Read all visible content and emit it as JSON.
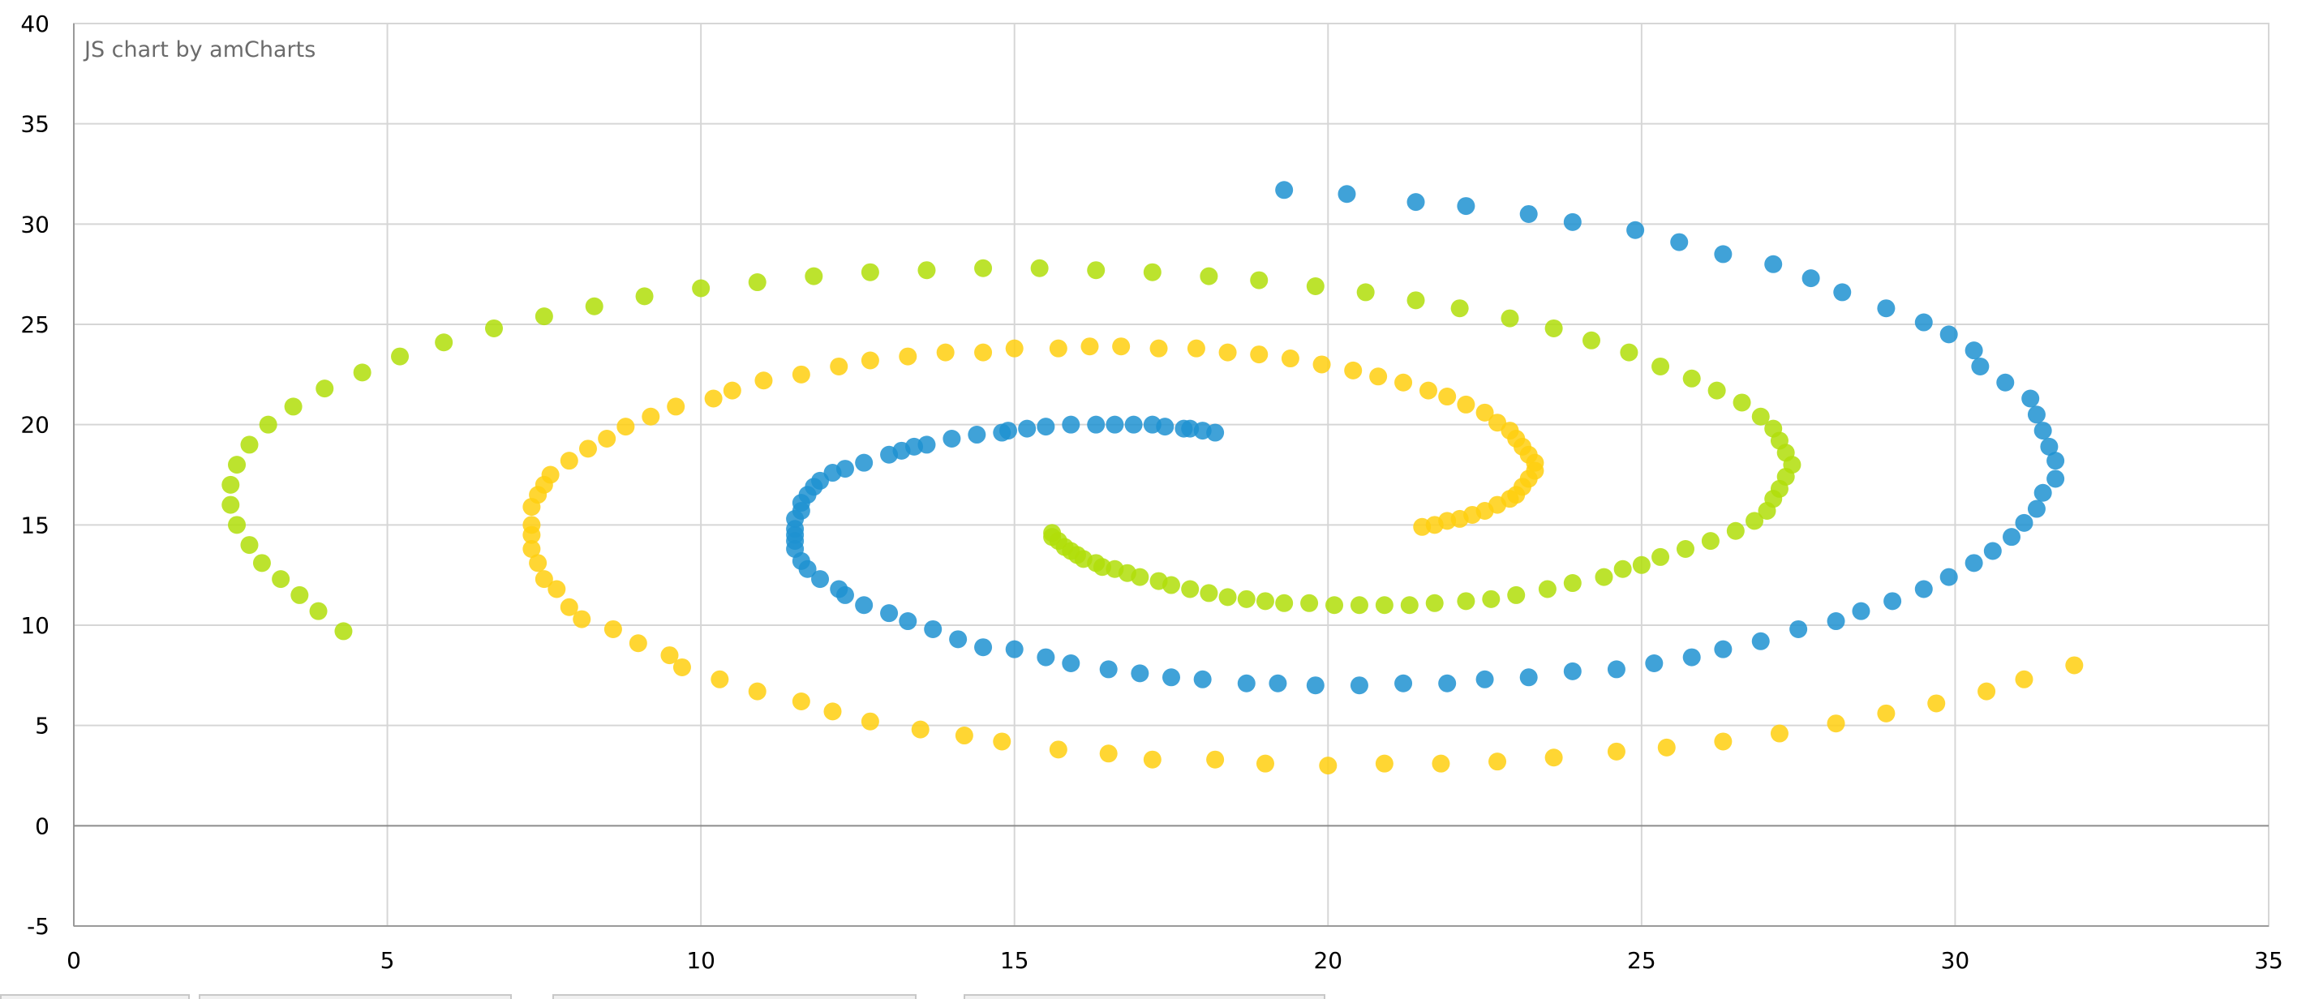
{
  "credit": "JS chart by amCharts",
  "chart_data": {
    "type": "scatter",
    "title": "",
    "xlabel": "",
    "ylabel": "",
    "xlim": [
      0,
      35
    ],
    "ylim": [
      -5,
      40
    ],
    "x_ticks": [
      0,
      5,
      10,
      15,
      20,
      25,
      30,
      35
    ],
    "y_ticks": [
      -5,
      0,
      5,
      10,
      15,
      20,
      25,
      30,
      35,
      40
    ],
    "grid": true,
    "legend": "none",
    "series": [
      {
        "color": "#1f92d1",
        "points": [
          [
            18.2,
            19.6
          ],
          [
            18.0,
            19.7
          ],
          [
            17.8,
            19.8
          ],
          [
            17.7,
            19.8
          ],
          [
            17.4,
            19.9
          ],
          [
            17.2,
            20.0
          ],
          [
            16.9,
            20.0
          ],
          [
            16.6,
            20.0
          ],
          [
            16.3,
            20.0
          ],
          [
            15.9,
            20.0
          ],
          [
            15.5,
            19.9
          ],
          [
            15.2,
            19.8
          ],
          [
            14.9,
            19.7
          ],
          [
            14.8,
            19.6
          ],
          [
            14.4,
            19.5
          ],
          [
            14.0,
            19.3
          ],
          [
            13.6,
            19.0
          ],
          [
            13.4,
            18.9
          ],
          [
            13.2,
            18.7
          ],
          [
            13.0,
            18.5
          ],
          [
            12.6,
            18.1
          ],
          [
            12.3,
            17.8
          ],
          [
            12.1,
            17.6
          ],
          [
            11.9,
            17.2
          ],
          [
            11.8,
            16.9
          ],
          [
            11.7,
            16.5
          ],
          [
            11.6,
            16.1
          ],
          [
            11.6,
            15.7
          ],
          [
            11.5,
            15.3
          ],
          [
            11.5,
            14.8
          ],
          [
            11.5,
            14.5
          ],
          [
            11.5,
            14.2
          ],
          [
            11.5,
            13.8
          ],
          [
            11.6,
            13.2
          ],
          [
            11.7,
            12.8
          ],
          [
            11.9,
            12.3
          ],
          [
            12.2,
            11.8
          ],
          [
            12.3,
            11.5
          ],
          [
            12.6,
            11.0
          ],
          [
            13.0,
            10.6
          ],
          [
            13.3,
            10.2
          ],
          [
            13.7,
            9.8
          ],
          [
            14.1,
            9.3
          ],
          [
            14.5,
            8.9
          ],
          [
            15.0,
            8.8
          ],
          [
            15.5,
            8.4
          ],
          [
            15.9,
            8.1
          ],
          [
            16.5,
            7.8
          ],
          [
            17.0,
            7.6
          ],
          [
            17.5,
            7.4
          ],
          [
            18.0,
            7.3
          ],
          [
            18.7,
            7.1
          ],
          [
            19.2,
            7.1
          ],
          [
            19.8,
            7.0
          ],
          [
            20.5,
            7.0
          ],
          [
            21.2,
            7.1
          ],
          [
            21.9,
            7.1
          ],
          [
            22.5,
            7.3
          ],
          [
            23.2,
            7.4
          ],
          [
            23.9,
            7.7
          ],
          [
            24.6,
            7.8
          ],
          [
            25.2,
            8.1
          ],
          [
            25.8,
            8.4
          ],
          [
            26.3,
            8.8
          ],
          [
            26.9,
            9.2
          ],
          [
            27.5,
            9.8
          ],
          [
            28.1,
            10.2
          ],
          [
            28.5,
            10.7
          ],
          [
            29.0,
            11.2
          ],
          [
            29.5,
            11.8
          ],
          [
            29.9,
            12.4
          ],
          [
            30.3,
            13.1
          ],
          [
            30.6,
            13.7
          ],
          [
            30.9,
            14.4
          ],
          [
            31.1,
            15.1
          ],
          [
            31.3,
            15.8
          ],
          [
            31.4,
            16.6
          ],
          [
            31.6,
            17.3
          ],
          [
            31.6,
            18.2
          ],
          [
            31.5,
            18.9
          ],
          [
            31.4,
            19.7
          ],
          [
            31.3,
            20.5
          ],
          [
            31.2,
            21.3
          ],
          [
            30.8,
            22.1
          ],
          [
            30.4,
            22.9
          ],
          [
            30.3,
            23.7
          ],
          [
            29.9,
            24.5
          ],
          [
            29.5,
            25.1
          ],
          [
            28.9,
            25.8
          ],
          [
            28.2,
            26.6
          ],
          [
            27.7,
            27.3
          ],
          [
            27.1,
            28.0
          ],
          [
            26.3,
            28.5
          ],
          [
            25.6,
            29.1
          ],
          [
            24.9,
            29.7
          ],
          [
            23.9,
            30.1
          ],
          [
            23.2,
            30.5
          ],
          [
            22.2,
            30.9
          ],
          [
            21.4,
            31.1
          ],
          [
            20.3,
            31.5
          ],
          [
            19.3,
            31.7
          ]
        ]
      },
      {
        "color": "#ffcf0f",
        "points": [
          [
            21.5,
            14.9
          ],
          [
            21.7,
            15.0
          ],
          [
            21.9,
            15.2
          ],
          [
            22.1,
            15.3
          ],
          [
            22.3,
            15.5
          ],
          [
            22.5,
            15.7
          ],
          [
            22.7,
            16.0
          ],
          [
            22.9,
            16.3
          ],
          [
            23.0,
            16.5
          ],
          [
            23.1,
            16.9
          ],
          [
            23.2,
            17.3
          ],
          [
            23.3,
            17.7
          ],
          [
            23.3,
            18.1
          ],
          [
            23.2,
            18.5
          ],
          [
            23.1,
            18.9
          ],
          [
            23.0,
            19.3
          ],
          [
            22.9,
            19.7
          ],
          [
            22.7,
            20.1
          ],
          [
            22.5,
            20.6
          ],
          [
            22.2,
            21.0
          ],
          [
            21.9,
            21.4
          ],
          [
            21.6,
            21.7
          ],
          [
            21.2,
            22.1
          ],
          [
            20.8,
            22.4
          ],
          [
            20.4,
            22.7
          ],
          [
            19.9,
            23.0
          ],
          [
            19.4,
            23.3
          ],
          [
            18.9,
            23.5
          ],
          [
            18.4,
            23.6
          ],
          [
            17.9,
            23.8
          ],
          [
            17.3,
            23.8
          ],
          [
            16.7,
            23.9
          ],
          [
            16.2,
            23.9
          ],
          [
            15.7,
            23.8
          ],
          [
            15.0,
            23.8
          ],
          [
            14.5,
            23.6
          ],
          [
            13.9,
            23.6
          ],
          [
            13.3,
            23.4
          ],
          [
            12.7,
            23.2
          ],
          [
            12.2,
            22.9
          ],
          [
            11.6,
            22.5
          ],
          [
            11.0,
            22.2
          ],
          [
            10.5,
            21.7
          ],
          [
            10.2,
            21.3
          ],
          [
            9.6,
            20.9
          ],
          [
            9.2,
            20.4
          ],
          [
            8.8,
            19.9
          ],
          [
            8.5,
            19.3
          ],
          [
            8.2,
            18.8
          ],
          [
            7.9,
            18.2
          ],
          [
            7.6,
            17.5
          ],
          [
            7.5,
            17.0
          ],
          [
            7.4,
            16.5
          ],
          [
            7.3,
            15.9
          ],
          [
            7.3,
            15.0
          ],
          [
            7.3,
            14.5
          ],
          [
            7.3,
            13.8
          ],
          [
            7.4,
            13.1
          ],
          [
            7.5,
            12.3
          ],
          [
            7.7,
            11.8
          ],
          [
            7.9,
            10.9
          ],
          [
            8.1,
            10.3
          ],
          [
            8.6,
            9.8
          ],
          [
            9.0,
            9.1
          ],
          [
            9.5,
            8.5
          ],
          [
            9.7,
            7.9
          ],
          [
            10.3,
            7.3
          ],
          [
            10.9,
            6.7
          ],
          [
            11.6,
            6.2
          ],
          [
            12.1,
            5.7
          ],
          [
            12.7,
            5.2
          ],
          [
            13.5,
            4.8
          ],
          [
            14.2,
            4.5
          ],
          [
            14.8,
            4.2
          ],
          [
            15.7,
            3.8
          ],
          [
            16.5,
            3.6
          ],
          [
            17.2,
            3.3
          ],
          [
            18.2,
            3.3
          ],
          [
            19.0,
            3.1
          ],
          [
            20.0,
            3.0
          ],
          [
            20.9,
            3.1
          ],
          [
            21.8,
            3.1
          ],
          [
            22.7,
            3.2
          ],
          [
            23.6,
            3.4
          ],
          [
            24.6,
            3.7
          ],
          [
            25.4,
            3.9
          ],
          [
            26.3,
            4.2
          ],
          [
            27.2,
            4.6
          ],
          [
            28.1,
            5.1
          ],
          [
            28.9,
            5.6
          ],
          [
            29.7,
            6.1
          ],
          [
            30.5,
            6.7
          ],
          [
            31.1,
            7.3
          ],
          [
            31.9,
            8.0
          ]
        ]
      },
      {
        "color": "#b0de09",
        "points": [
          [
            15.6,
            14.6
          ],
          [
            15.6,
            14.4
          ],
          [
            15.7,
            14.2
          ],
          [
            15.8,
            13.9
          ],
          [
            15.9,
            13.7
          ],
          [
            16.0,
            13.5
          ],
          [
            16.1,
            13.3
          ],
          [
            16.3,
            13.1
          ],
          [
            16.4,
            12.9
          ],
          [
            16.6,
            12.8
          ],
          [
            16.8,
            12.6
          ],
          [
            17.0,
            12.4
          ],
          [
            17.3,
            12.2
          ],
          [
            17.5,
            12.0
          ],
          [
            17.8,
            11.8
          ],
          [
            18.1,
            11.6
          ],
          [
            18.4,
            11.4
          ],
          [
            18.7,
            11.3
          ],
          [
            19.0,
            11.2
          ],
          [
            19.3,
            11.1
          ],
          [
            19.7,
            11.1
          ],
          [
            20.1,
            11.0
          ],
          [
            20.5,
            11.0
          ],
          [
            20.9,
            11.0
          ],
          [
            21.3,
            11.0
          ],
          [
            21.7,
            11.1
          ],
          [
            22.2,
            11.2
          ],
          [
            22.6,
            11.3
          ],
          [
            23.0,
            11.5
          ],
          [
            23.5,
            11.8
          ],
          [
            23.9,
            12.1
          ],
          [
            24.4,
            12.4
          ],
          [
            24.7,
            12.8
          ],
          [
            25.0,
            13.0
          ],
          [
            25.3,
            13.4
          ],
          [
            25.7,
            13.8
          ],
          [
            26.1,
            14.2
          ],
          [
            26.5,
            14.7
          ],
          [
            26.8,
            15.2
          ],
          [
            27.0,
            15.7
          ],
          [
            27.1,
            16.3
          ],
          [
            27.2,
            16.8
          ],
          [
            27.3,
            17.4
          ],
          [
            27.4,
            18.0
          ],
          [
            27.3,
            18.6
          ],
          [
            27.2,
            19.2
          ],
          [
            27.1,
            19.8
          ],
          [
            26.9,
            20.4
          ],
          [
            26.6,
            21.1
          ],
          [
            26.2,
            21.7
          ],
          [
            25.8,
            22.3
          ],
          [
            25.3,
            22.9
          ],
          [
            24.8,
            23.6
          ],
          [
            24.2,
            24.2
          ],
          [
            23.6,
            24.8
          ],
          [
            22.9,
            25.3
          ],
          [
            22.1,
            25.8
          ],
          [
            21.4,
            26.2
          ],
          [
            20.6,
            26.6
          ],
          [
            19.8,
            26.9
          ],
          [
            18.9,
            27.2
          ],
          [
            18.1,
            27.4
          ],
          [
            17.2,
            27.6
          ],
          [
            16.3,
            27.7
          ],
          [
            15.4,
            27.8
          ],
          [
            14.5,
            27.8
          ],
          [
            13.6,
            27.7
          ],
          [
            12.7,
            27.6
          ],
          [
            11.8,
            27.4
          ],
          [
            10.9,
            27.1
          ],
          [
            10.0,
            26.8
          ],
          [
            9.1,
            26.4
          ],
          [
            8.3,
            25.9
          ],
          [
            7.5,
            25.4
          ],
          [
            6.7,
            24.8
          ],
          [
            5.9,
            24.1
          ],
          [
            5.2,
            23.4
          ],
          [
            4.6,
            22.6
          ],
          [
            4.0,
            21.8
          ],
          [
            3.5,
            20.9
          ],
          [
            3.1,
            20.0
          ],
          [
            2.8,
            19.0
          ],
          [
            2.6,
            18.0
          ],
          [
            2.5,
            17.0
          ],
          [
            2.5,
            16.0
          ],
          [
            2.6,
            15.0
          ],
          [
            2.8,
            14.0
          ],
          [
            3.0,
            13.1
          ],
          [
            3.3,
            12.3
          ],
          [
            3.6,
            11.5
          ],
          [
            3.9,
            10.7
          ],
          [
            4.3,
            9.7
          ]
        ]
      }
    ]
  }
}
